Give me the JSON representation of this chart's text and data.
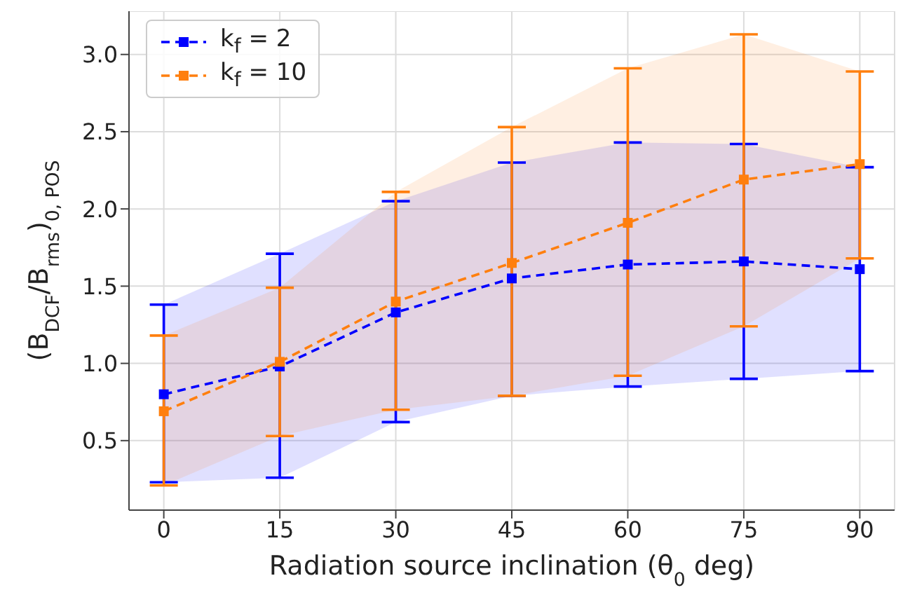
{
  "chart_data": {
    "type": "line",
    "xlabel": "Radiation source inclination (θ$_{0}$ deg)",
    "ylabel": "(B$_{DCF}$/B$_{rms}$)$_{0, POS}$",
    "x": [
      0,
      15,
      30,
      45,
      60,
      75,
      90
    ],
    "xlim": [
      -4.5,
      94.5
    ],
    "xticks": [
      0,
      15,
      30,
      45,
      60,
      75,
      90
    ],
    "ylim": [
      0.05,
      3.28
    ],
    "yticks": [
      0.5,
      {
        "value": 1,
        "label": "1.0"
      },
      1.5,
      {
        "value": 2,
        "label": "2.0"
      },
      2.5,
      {
        "value": 3,
        "label": "3.0"
      }
    ],
    "grid": true,
    "legend": "top left",
    "marker": "square",
    "line_style": "dashed",
    "series": [
      {
        "name": "k$_{f}$ = 2",
        "color": "#0000ff",
        "values": [
          0.8,
          0.98,
          1.33,
          1.55,
          1.64,
          1.66,
          1.61
        ],
        "errors": [
          [
            0.23,
            1.38
          ],
          [
            0.26,
            1.71
          ],
          [
            0.62,
            2.05
          ],
          [
            0.79,
            2.3
          ],
          [
            0.85,
            2.43
          ],
          [
            0.9,
            2.42
          ],
          [
            0.95,
            2.27
          ]
        ],
        "lower": [
          0.23,
          0.26,
          0.62,
          0.79,
          0.85,
          0.9,
          0.95
        ],
        "upper": [
          1.38,
          1.71,
          2.05,
          2.3,
          2.43,
          2.42,
          2.27
        ]
      },
      {
        "name": "k$_{f}$ = 10",
        "color": "#ff7f0e",
        "values": [
          0.69,
          1.01,
          1.4,
          1.65,
          1.91,
          2.19,
          2.29
        ],
        "errors": [
          [
            0.21,
            1.18
          ],
          [
            0.53,
            1.49
          ],
          [
            0.7,
            2.11
          ],
          [
            0.79,
            2.53
          ],
          [
            0.92,
            2.91
          ],
          [
            1.24,
            3.13
          ],
          [
            1.68,
            2.89
          ]
        ],
        "lower": [
          0.21,
          0.53,
          0.7,
          0.79,
          0.92,
          1.24,
          1.68
        ],
        "upper": [
          1.18,
          1.49,
          2.11,
          2.53,
          2.91,
          3.13,
          2.89
        ]
      }
    ]
  }
}
